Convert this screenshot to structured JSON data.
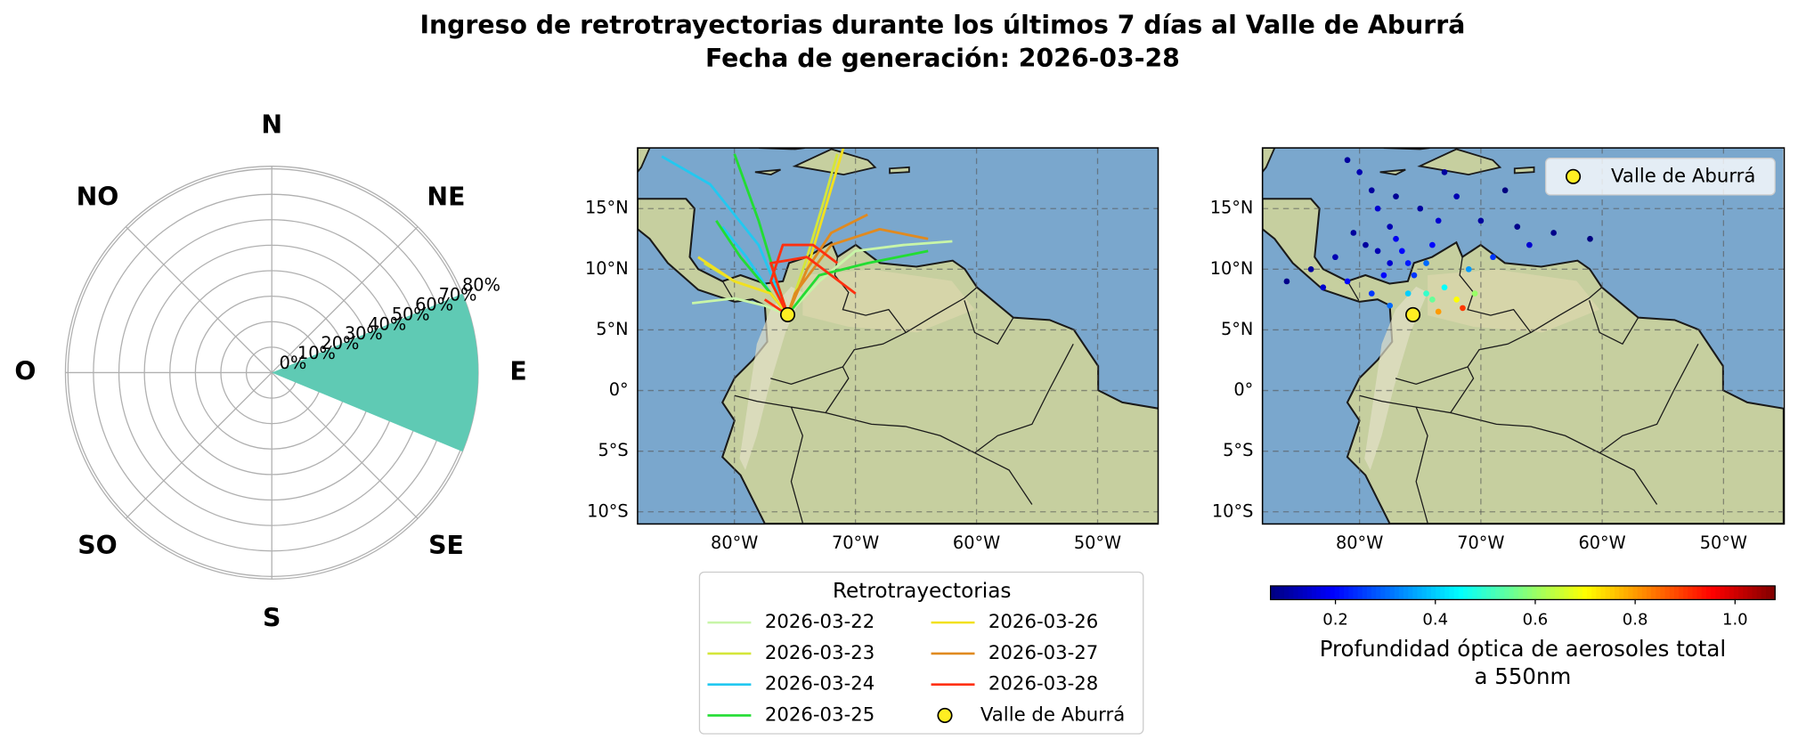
{
  "suptitle": [
    "Ingreso de retrotrayectorias durante los últimos 7 días al Valle de Aburrá",
    "Fecha de generación: 2026-03-28"
  ],
  "chart_data": [
    {
      "type": "polar-bar",
      "directions": [
        "N",
        "NE",
        "E",
        "SE",
        "S",
        "SO",
        "O",
        "NO"
      ],
      "values": [
        0,
        0,
        81,
        0,
        0,
        0,
        0,
        0
      ],
      "color": "#5fcab4",
      "rlim": [
        0,
        81
      ],
      "rticks": [
        {
          "value": 0,
          "label": "0%"
        },
        {
          "value": 10,
          "label": "10%"
        },
        {
          "value": 20,
          "label": "20%"
        },
        {
          "value": 30,
          "label": "30%"
        },
        {
          "value": 40,
          "label": "40%"
        },
        {
          "value": 50,
          "label": "50%"
        },
        {
          "value": 60,
          "label": "60%"
        },
        {
          "value": 70,
          "label": "70%"
        },
        {
          "value": 80,
          "label": "80%"
        }
      ]
    },
    {
      "type": "map-lines",
      "xlim": [
        -88,
        -45
      ],
      "ylim": [
        -11,
        20
      ],
      "grid": true,
      "xticks": [
        {
          "value": -80,
          "label": "80°W"
        },
        {
          "value": -70,
          "label": "70°W"
        },
        {
          "value": -60,
          "label": "60°W"
        },
        {
          "value": -50,
          "label": "50°W"
        }
      ],
      "yticks": [
        {
          "value": 15,
          "label": "15°N"
        },
        {
          "value": 10,
          "label": "10°N"
        },
        {
          "value": 5,
          "label": "5°N"
        },
        {
          "value": 0,
          "label": "0°"
        },
        {
          "value": -5,
          "label": "5°S"
        },
        {
          "value": -10,
          "label": "10°S"
        }
      ],
      "legend_title": "Retrotrayectorias",
      "series": [
        {
          "name": "2026-03-22",
          "color": "#c8f5a8",
          "x": [
            -83.5,
            -80,
            -77.5,
            -75.6,
            null,
            -62,
            -66,
            -70,
            -73,
            -75.6
          ],
          "y": [
            7.2,
            7.6,
            7,
            6.25,
            null,
            12.3,
            12,
            11.5,
            9,
            6.25
          ]
        },
        {
          "name": "2026-03-23",
          "color": "#d4e63a",
          "x": [
            -82.5,
            -80,
            -77,
            -75.6,
            null,
            -71.5,
            -72.5,
            -74,
            -75.6
          ],
          "y": [
            10.5,
            9,
            8,
            6.25,
            null,
            19.5,
            16,
            11,
            6.25
          ]
        },
        {
          "name": "2026-03-24",
          "color": "#22c8f0",
          "x": [
            -86,
            -82,
            -78,
            -75.6,
            null,
            -81,
            -79,
            -77,
            -75.6
          ],
          "y": [
            19.3,
            17,
            12,
            6.25,
            null,
            13.5,
            11,
            8,
            6.25
          ]
        },
        {
          "name": "2026-03-25",
          "color": "#22dd33",
          "x": [
            -80,
            -78,
            -76.5,
            -75.6,
            null,
            -64,
            -69,
            -73,
            -75.6,
            null,
            -81.5,
            -79.5,
            -77,
            -75.6
          ],
          "y": [
            19.5,
            14,
            9,
            6.25,
            null,
            11.5,
            10.5,
            9.5,
            6.25,
            null,
            14,
            11,
            8,
            6.25
          ]
        },
        {
          "name": "2026-03-26",
          "color": "#f2e020",
          "x": [
            -71,
            -72.5,
            -74,
            -75.6,
            null,
            -83,
            -80,
            -77,
            -75.6
          ],
          "y": [
            20,
            15,
            10,
            6.25,
            null,
            11,
            9,
            8,
            6.25
          ]
        },
        {
          "name": "2026-03-27",
          "color": "#e08a20",
          "x": [
            -64,
            -68,
            -72,
            -75,
            -75.6,
            null,
            -69,
            -72,
            -74,
            -75.6
          ],
          "y": [
            12.5,
            13.3,
            12,
            8,
            6.25,
            null,
            14.5,
            13,
            10,
            6.25
          ]
        },
        {
          "name": "2026-03-28",
          "color": "#ff3010",
          "x": [
            -71.5,
            -73.5,
            -76,
            -77,
            -75.6,
            null,
            -70,
            -74,
            -77,
            -75.6,
            null,
            -77.5,
            -76,
            -75.6
          ],
          "y": [
            10.5,
            12,
            12,
            9,
            6.25,
            null,
            8,
            11,
            10.5,
            6.25,
            null,
            7.5,
            6.5,
            6.25
          ]
        }
      ],
      "marker": {
        "name": "Valle de Aburrá",
        "x": -75.6,
        "y": 6.25,
        "color": "#ffee22"
      }
    },
    {
      "type": "map-scatter",
      "xlim": [
        -88,
        -45
      ],
      "ylim": [
        -11,
        20
      ],
      "grid": true,
      "xticks": [
        {
          "value": -80,
          "label": "80°W"
        },
        {
          "value": -70,
          "label": "70°W"
        },
        {
          "value": -60,
          "label": "60°W"
        },
        {
          "value": -50,
          "label": "50°W"
        }
      ],
      "yticks": [
        {
          "value": 15,
          "label": "15°N"
        },
        {
          "value": 10,
          "label": "10°N"
        },
        {
          "value": 5,
          "label": "5°N"
        },
        {
          "value": 0,
          "label": "0°"
        },
        {
          "value": -5,
          "label": "5°S"
        },
        {
          "value": -10,
          "label": "10°S"
        }
      ],
      "x": [
        -81,
        -80,
        -79,
        -78.5,
        -77.5,
        -77,
        -76.5,
        -76,
        -75.5,
        -77.5,
        -78.5,
        -79.5,
        -80.5,
        -82,
        -84,
        -86,
        -83,
        -81,
        -79,
        -77.5,
        -73,
        -72,
        -73.5,
        -74,
        -74.5,
        -70,
        -67,
        -64,
        -61,
        -66,
        -69,
        -71,
        -73,
        -74,
        -72,
        -73.5,
        -70.5,
        -71.5,
        -74.5,
        -76,
        -78,
        -77,
        -75,
        -68
      ],
      "y": [
        19,
        18,
        16.5,
        15,
        13.5,
        12.5,
        11.5,
        10.5,
        9.5,
        10.5,
        11.5,
        12,
        13,
        11,
        10,
        9,
        8.5,
        9,
        8,
        7,
        18,
        16,
        14,
        12,
        10.5,
        14,
        13.5,
        13,
        12.5,
        12,
        11,
        10,
        8.5,
        7.5,
        7.5,
        6.5,
        8,
        6.8,
        8,
        8,
        9.5,
        16,
        15,
        16.5
      ],
      "values": [
        0.1,
        0.12,
        0.1,
        0.15,
        0.12,
        0.18,
        0.2,
        0.22,
        0.25,
        0.15,
        0.12,
        0.1,
        0.1,
        0.12,
        0.1,
        0.08,
        0.15,
        0.2,
        0.25,
        0.3,
        0.1,
        0.12,
        0.15,
        0.2,
        0.3,
        0.1,
        0.08,
        0.08,
        0.07,
        0.15,
        0.25,
        0.35,
        0.45,
        0.55,
        0.7,
        0.8,
        0.6,
        0.9,
        0.5,
        0.4,
        0.2,
        0.09,
        0.1,
        0.07
      ],
      "colormap": "jet",
      "colorbar": {
        "label": [
          "Profundidad óptica de aerosoles total",
          "a 550nm"
        ],
        "lim": [
          0.07,
          1.08
        ],
        "ticks": [
          0.2,
          0.4,
          0.6,
          0.8,
          {
            "value": 1,
            "label": "1.0"
          }
        ]
      },
      "marker": {
        "name": "Valle de Aburrá",
        "x": -75.6,
        "y": 6.25,
        "color": "#ffee22"
      }
    }
  ]
}
